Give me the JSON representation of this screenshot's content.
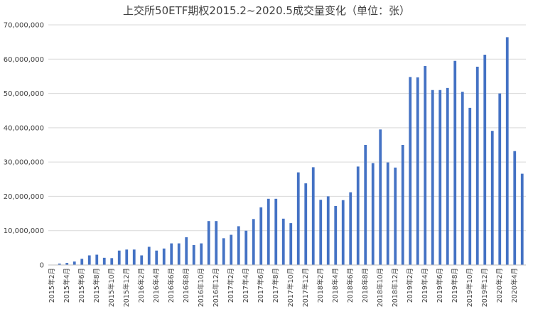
{
  "chart_data": {
    "type": "bar",
    "title": "上交所50ETF期权2015.2~2020.5成交量变化（单位：张）",
    "xlabel": "",
    "ylabel": "",
    "ylim": [
      0,
      70000000
    ],
    "yticks": [
      0,
      10000000,
      20000000,
      30000000,
      40000000,
      50000000,
      60000000,
      70000000
    ],
    "ytick_labels": [
      "0",
      "10,000,000",
      "20,000,000",
      "30,000,000",
      "40,000,000",
      "50,000,000",
      "60,000,000",
      "70,000,000"
    ],
    "grid": true,
    "legend": "none",
    "bar_color": "#4472C4",
    "categories": [
      "2015年2月",
      "2015年3月",
      "2015年4月",
      "2015年5月",
      "2015年6月",
      "2015年7月",
      "2015年8月",
      "2015年9月",
      "2015年10月",
      "2015年11月",
      "2015年12月",
      "2016年1月",
      "2016年2月",
      "2016年3月",
      "2016年4月",
      "2016年5月",
      "2016年6月",
      "2016年7月",
      "2016年8月",
      "2016年9月",
      "2016年10月",
      "2016年11月",
      "2016年12月",
      "2017年1月",
      "2017年2月",
      "2017年3月",
      "2017年4月",
      "2017年5月",
      "2017年6月",
      "2017年7月",
      "2017年8月",
      "2017年9月",
      "2017年10月",
      "2017年11月",
      "2017年12月",
      "2018年1月",
      "2018年2月",
      "2018年3月",
      "2018年4月",
      "2018年5月",
      "2018年6月",
      "2018年7月",
      "2018年8月",
      "2018年9月",
      "2018年10月",
      "2018年11月",
      "2018年12月",
      "2019年1月",
      "2019年2月",
      "2019年3月",
      "2019年4月",
      "2019年5月",
      "2019年6月",
      "2019年7月",
      "2019年8月",
      "2019年9月",
      "2019年10月",
      "2019年11月",
      "2019年12月",
      "2020年1月",
      "2020年2月",
      "2020年3月",
      "2020年4月",
      "2020年5月"
    ],
    "shown_tick_labels": [
      "2015年2月",
      "2015年4月",
      "2015年6月",
      "2015年8月",
      "2015年10月",
      "2015年12月",
      "2016年2月",
      "2016年4月",
      "2016年6月",
      "2016年8月",
      "2016年10月",
      "2016年12月",
      "2017年2月",
      "2017年4月",
      "2017年6月",
      "2017年8月",
      "2017年10月",
      "2017年12月",
      "2018年2月",
      "2018年4月",
      "2018年6月",
      "2018年8月",
      "2018年10月",
      "2018年12月",
      "2019年2月",
      "2019年4月",
      "2019年6月",
      "2019年8月",
      "2019年10月",
      "2019年12月",
      "2020年2月",
      "2020年4月"
    ],
    "values": [
      100000,
      400000,
      600000,
      1000000,
      1800000,
      2800000,
      3000000,
      2100000,
      2000000,
      4200000,
      4500000,
      4500000,
      2800000,
      5300000,
      4200000,
      4800000,
      6300000,
      6300000,
      8100000,
      5800000,
      6300000,
      12800000,
      12800000,
      7800000,
      8800000,
      11300000,
      10000000,
      13400000,
      16800000,
      19300000,
      19300000,
      13500000,
      12200000,
      27000000,
      23800000,
      28500000,
      19000000,
      20000000,
      17200000,
      18900000,
      21200000,
      28700000,
      35000000,
      29700000,
      39500000,
      29900000,
      28400000,
      35000000,
      54800000,
      54700000,
      58000000,
      51000000,
      51000000,
      51600000,
      59500000,
      50500000,
      45800000,
      57800000,
      61300000,
      39100000,
      50000000,
      66400000,
      33200000,
      26600000
    ]
  }
}
